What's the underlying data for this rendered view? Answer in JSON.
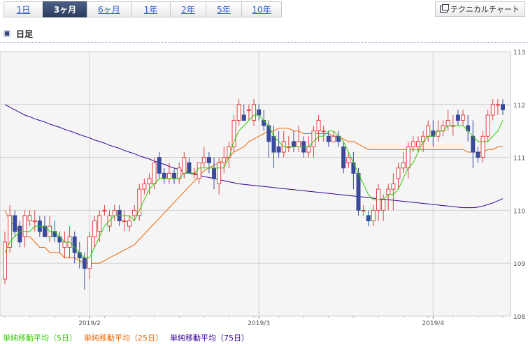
{
  "period_tabs": [
    {
      "label": "1日",
      "active": false
    },
    {
      "label": "3ヶ月",
      "active": true
    },
    {
      "label": "6ヶ月",
      "active": false
    },
    {
      "label": "1年",
      "active": false
    },
    {
      "label": "2年",
      "active": false
    },
    {
      "label": "5年",
      "active": false
    },
    {
      "label": "10年",
      "active": false
    }
  ],
  "technical_button": {
    "label": "テクニカルチャート",
    "icon": "window-icon"
  },
  "section": {
    "title": "日足",
    "icon": "square-bullet-icon"
  },
  "colors": {
    "up": "#e04040",
    "down": "#3a4a9a",
    "ma5": "#33cc00",
    "ma25": "#ee6600",
    "ma75": "#330099",
    "grid": "#d0d0d0",
    "plot_bg": "#f5f5f5",
    "active_tab": "#2c3d5e"
  },
  "legend": [
    {
      "label": "単純移動平均（5日）",
      "color": "#33cc00"
    },
    {
      "label": "単純移動平均（25日）",
      "color": "#ee6600"
    },
    {
      "label": "単純移動平均（75日）",
      "color": "#330099"
    }
  ],
  "chart_data": {
    "type": "candlestick",
    "ylim": [
      108,
      113
    ],
    "y_ticks": [
      "108",
      "109",
      "110",
      "111",
      "112",
      "113"
    ],
    "x_labels": [
      {
        "label": "2019/2",
        "index": 17
      },
      {
        "label": "2019/3",
        "index": 51
      },
      {
        "label": "2019/4",
        "index": 86
      }
    ],
    "candles": [
      [
        108.7,
        109.6,
        108.6,
        109.4
      ],
      [
        109.3,
        110.1,
        109.2,
        109.9
      ],
      [
        109.9,
        110.0,
        109.5,
        109.6
      ],
      [
        109.7,
        109.8,
        109.3,
        109.4
      ],
      [
        109.5,
        110.0,
        109.3,
        109.9
      ],
      [
        109.8,
        110.0,
        109.7,
        109.9
      ],
      [
        109.8,
        110.0,
        109.6,
        109.8
      ],
      [
        109.8,
        109.9,
        109.5,
        109.6
      ],
      [
        109.7,
        109.9,
        109.5,
        109.5
      ],
      [
        109.5,
        109.9,
        109.4,
        109.7
      ],
      [
        109.6,
        109.8,
        109.4,
        109.5
      ],
      [
        109.5,
        109.6,
        109.2,
        109.4
      ],
      [
        109.3,
        109.6,
        109.1,
        109.4
      ],
      [
        109.3,
        109.7,
        109.1,
        109.5
      ],
      [
        109.5,
        109.6,
        109.0,
        109.2
      ],
      [
        109.2,
        109.4,
        108.9,
        109.1
      ],
      [
        109.1,
        109.2,
        108.5,
        108.9
      ],
      [
        108.9,
        109.6,
        108.7,
        109.5
      ],
      [
        109.5,
        109.9,
        109.3,
        109.8
      ],
      [
        109.6,
        110.0,
        109.4,
        109.9
      ],
      [
        110.0,
        110.1,
        109.9,
        110.0
      ],
      [
        109.7,
        110.0,
        109.6,
        109.9
      ],
      [
        109.9,
        110.1,
        109.8,
        110.0
      ],
      [
        110.0,
        110.1,
        109.7,
        109.8
      ],
      [
        109.8,
        110.0,
        109.6,
        109.8
      ],
      [
        109.7,
        109.9,
        109.6,
        109.8
      ],
      [
        109.9,
        110.1,
        109.8,
        110.0
      ],
      [
        109.9,
        110.5,
        109.8,
        110.4
      ],
      [
        110.4,
        110.6,
        110.3,
        110.5
      ],
      [
        110.5,
        110.7,
        110.3,
        110.6
      ],
      [
        110.5,
        111.0,
        110.4,
        110.9
      ],
      [
        111.0,
        111.1,
        110.6,
        110.7
      ],
      [
        110.7,
        110.8,
        110.5,
        110.6
      ],
      [
        110.6,
        110.9,
        110.5,
        110.7
      ],
      [
        110.7,
        110.8,
        110.5,
        110.6
      ],
      [
        110.6,
        110.9,
        110.5,
        110.8
      ],
      [
        110.7,
        111.1,
        110.6,
        111.0
      ],
      [
        110.9,
        111.0,
        110.7,
        110.7
      ],
      [
        110.7,
        110.8,
        110.6,
        110.7
      ],
      [
        110.6,
        110.9,
        110.5,
        110.9
      ],
      [
        110.9,
        111.2,
        110.8,
        111.0
      ],
      [
        111.0,
        111.1,
        110.7,
        110.9
      ],
      [
        110.8,
        111.0,
        110.4,
        110.6
      ],
      [
        110.5,
        111.0,
        110.3,
        110.9
      ],
      [
        110.9,
        111.2,
        110.7,
        111.0
      ],
      [
        111.0,
        111.3,
        110.8,
        111.2
      ],
      [
        111.2,
        111.8,
        111.1,
        111.7
      ],
      [
        111.7,
        112.1,
        111.6,
        112.0
      ],
      [
        111.8,
        112.0,
        111.7,
        111.7
      ],
      [
        111.9,
        112.0,
        111.7,
        111.9
      ],
      [
        111.7,
        112.1,
        111.6,
        112.0
      ],
      [
        111.9,
        112.0,
        111.7,
        111.8
      ],
      [
        111.7,
        111.9,
        111.5,
        111.6
      ],
      [
        111.6,
        111.7,
        111.0,
        111.3
      ],
      [
        111.4,
        111.6,
        110.8,
        111.1
      ],
      [
        111.2,
        111.5,
        111.0,
        111.1
      ],
      [
        111.1,
        111.5,
        111.0,
        111.3
      ],
      [
        111.2,
        111.4,
        111.1,
        111.2
      ],
      [
        111.3,
        111.5,
        111.1,
        111.2
      ],
      [
        111.2,
        111.6,
        111.1,
        111.3
      ],
      [
        111.3,
        111.4,
        111.0,
        111.1
      ],
      [
        111.1,
        111.4,
        111.0,
        111.2
      ],
      [
        111.2,
        111.6,
        111.0,
        111.5
      ],
      [
        111.5,
        111.8,
        111.3,
        111.7
      ],
      [
        111.5,
        111.6,
        111.3,
        111.5
      ],
      [
        111.4,
        111.5,
        111.2,
        111.3
      ],
      [
        111.3,
        111.5,
        111.3,
        111.4
      ],
      [
        111.4,
        111.5,
        111.2,
        111.3
      ],
      [
        111.2,
        111.3,
        110.7,
        110.8
      ],
      [
        110.9,
        111.1,
        110.8,
        111.0
      ],
      [
        110.9,
        111.1,
        110.4,
        110.7
      ],
      [
        110.7,
        110.8,
        109.9,
        110.0
      ],
      [
        110.0,
        110.1,
        109.9,
        110.0
      ],
      [
        109.9,
        110.0,
        109.7,
        109.8
      ],
      [
        109.8,
        110.1,
        109.7,
        110.0
      ],
      [
        110.0,
        110.5,
        109.8,
        110.4
      ],
      [
        110.0,
        110.3,
        109.8,
        110.2
      ],
      [
        110.3,
        110.5,
        110.0,
        110.4
      ],
      [
        110.4,
        110.7,
        110.0,
        110.5
      ],
      [
        110.6,
        110.9,
        110.4,
        110.8
      ],
      [
        110.8,
        111.1,
        110.7,
        110.9
      ],
      [
        110.8,
        111.3,
        110.6,
        111.2
      ],
      [
        111.2,
        111.4,
        111.1,
        111.3
      ],
      [
        111.2,
        111.4,
        111.1,
        111.3
      ],
      [
        111.3,
        111.5,
        111.1,
        111.4
      ],
      [
        111.4,
        111.7,
        111.3,
        111.6
      ],
      [
        111.5,
        111.7,
        111.2,
        111.4
      ],
      [
        111.4,
        111.7,
        111.3,
        111.5
      ],
      [
        111.5,
        111.7,
        111.4,
        111.6
      ],
      [
        111.6,
        111.9,
        111.5,
        111.7
      ],
      [
        111.6,
        111.8,
        111.4,
        111.6
      ],
      [
        111.8,
        111.9,
        111.6,
        111.7
      ],
      [
        111.7,
        111.9,
        111.6,
        111.8
      ],
      [
        111.6,
        111.8,
        111.3,
        111.5
      ],
      [
        111.4,
        111.7,
        110.8,
        111.1
      ],
      [
        111.1,
        111.2,
        110.9,
        111.0
      ],
      [
        111.0,
        111.5,
        110.9,
        111.4
      ],
      [
        111.4,
        111.9,
        111.3,
        111.8
      ],
      [
        111.8,
        112.1,
        111.7,
        112.0
      ],
      [
        112.0,
        112.1,
        111.8,
        112.0
      ],
      [
        112.0,
        112.1,
        111.8,
        111.9
      ]
    ],
    "ma5": [
      109.2,
      109.4,
      109.5,
      109.6,
      109.6,
      109.6,
      109.7,
      109.7,
      109.7,
      109.6,
      109.6,
      109.5,
      109.4,
      109.4,
      109.3,
      109.2,
      109.1,
      109.1,
      109.3,
      109.5,
      109.7,
      109.8,
      109.9,
      109.9,
      109.9,
      109.9,
      109.8,
      110.0,
      110.2,
      110.4,
      110.5,
      110.6,
      110.6,
      110.6,
      110.6,
      110.6,
      110.7,
      110.7,
      110.7,
      110.8,
      110.8,
      110.8,
      110.8,
      110.8,
      110.8,
      111.0,
      111.3,
      111.5,
      111.6,
      111.7,
      111.8,
      111.8,
      111.7,
      111.6,
      111.4,
      111.3,
      111.2,
      111.2,
      111.2,
      111.2,
      111.2,
      111.2,
      111.3,
      111.4,
      111.4,
      111.5,
      111.5,
      111.4,
      111.3,
      111.1,
      110.9,
      110.7,
      110.5,
      110.3,
      110.2,
      110.2,
      110.2,
      110.3,
      110.3,
      110.4,
      110.6,
      110.8,
      110.9,
      111.1,
      111.3,
      111.4,
      111.4,
      111.5,
      111.5,
      111.6,
      111.6,
      111.6,
      111.6,
      111.5,
      111.4,
      111.3,
      111.3,
      111.3,
      111.4,
      111.5,
      111.7
    ],
    "ma25": [
      110.0,
      109.8,
      109.7,
      109.6,
      109.5,
      109.5,
      109.4,
      109.3,
      109.3,
      109.2,
      109.2,
      109.2,
      109.1,
      109.1,
      109.1,
      109.05,
      109.0,
      109.0,
      109.0,
      109.0,
      109.05,
      109.1,
      109.15,
      109.2,
      109.25,
      109.3,
      109.35,
      109.45,
      109.55,
      109.65,
      109.75,
      109.85,
      109.95,
      110.05,
      110.15,
      110.25,
      110.35,
      110.45,
      110.55,
      110.65,
      110.75,
      110.8,
      110.85,
      110.9,
      110.95,
      111.0,
      111.1,
      111.15,
      111.2,
      111.3,
      111.35,
      111.4,
      111.45,
      111.5,
      111.5,
      111.55,
      111.55,
      111.55,
      111.5,
      111.5,
      111.45,
      111.45,
      111.45,
      111.45,
      111.45,
      111.45,
      111.4,
      111.4,
      111.35,
      111.3,
      111.3,
      111.25,
      111.2,
      111.15,
      111.15,
      111.15,
      111.15,
      111.15,
      111.15,
      111.15,
      111.15,
      111.15,
      111.15,
      111.15,
      111.15,
      111.15,
      111.15,
      111.15,
      111.15,
      111.15,
      111.15,
      111.15,
      111.15,
      111.1,
      111.1,
      111.1,
      111.1,
      111.15,
      111.15,
      111.2,
      111.2
    ],
    "ma75": [
      112.0,
      111.95,
      111.9,
      111.85,
      111.8,
      111.77,
      111.73,
      111.7,
      111.67,
      111.63,
      111.6,
      111.57,
      111.53,
      111.5,
      111.47,
      111.43,
      111.4,
      111.37,
      111.33,
      111.3,
      111.27,
      111.23,
      111.2,
      111.17,
      111.13,
      111.1,
      111.07,
      111.03,
      111.0,
      110.97,
      110.93,
      110.9,
      110.87,
      110.83,
      110.8,
      110.77,
      110.73,
      110.7,
      110.68,
      110.66,
      110.64,
      110.62,
      110.6,
      110.58,
      110.56,
      110.54,
      110.52,
      110.5,
      110.49,
      110.48,
      110.47,
      110.46,
      110.45,
      110.44,
      110.43,
      110.42,
      110.41,
      110.4,
      110.39,
      110.38,
      110.37,
      110.36,
      110.35,
      110.34,
      110.33,
      110.32,
      110.31,
      110.3,
      110.29,
      110.28,
      110.27,
      110.26,
      110.25,
      110.24,
      110.23,
      110.22,
      110.21,
      110.2,
      110.19,
      110.18,
      110.17,
      110.16,
      110.15,
      110.14,
      110.13,
      110.12,
      110.11,
      110.1,
      110.09,
      110.08,
      110.07,
      110.06,
      110.05,
      110.05,
      110.05,
      110.06,
      110.08,
      110.11,
      110.14,
      110.18,
      110.22
    ]
  }
}
